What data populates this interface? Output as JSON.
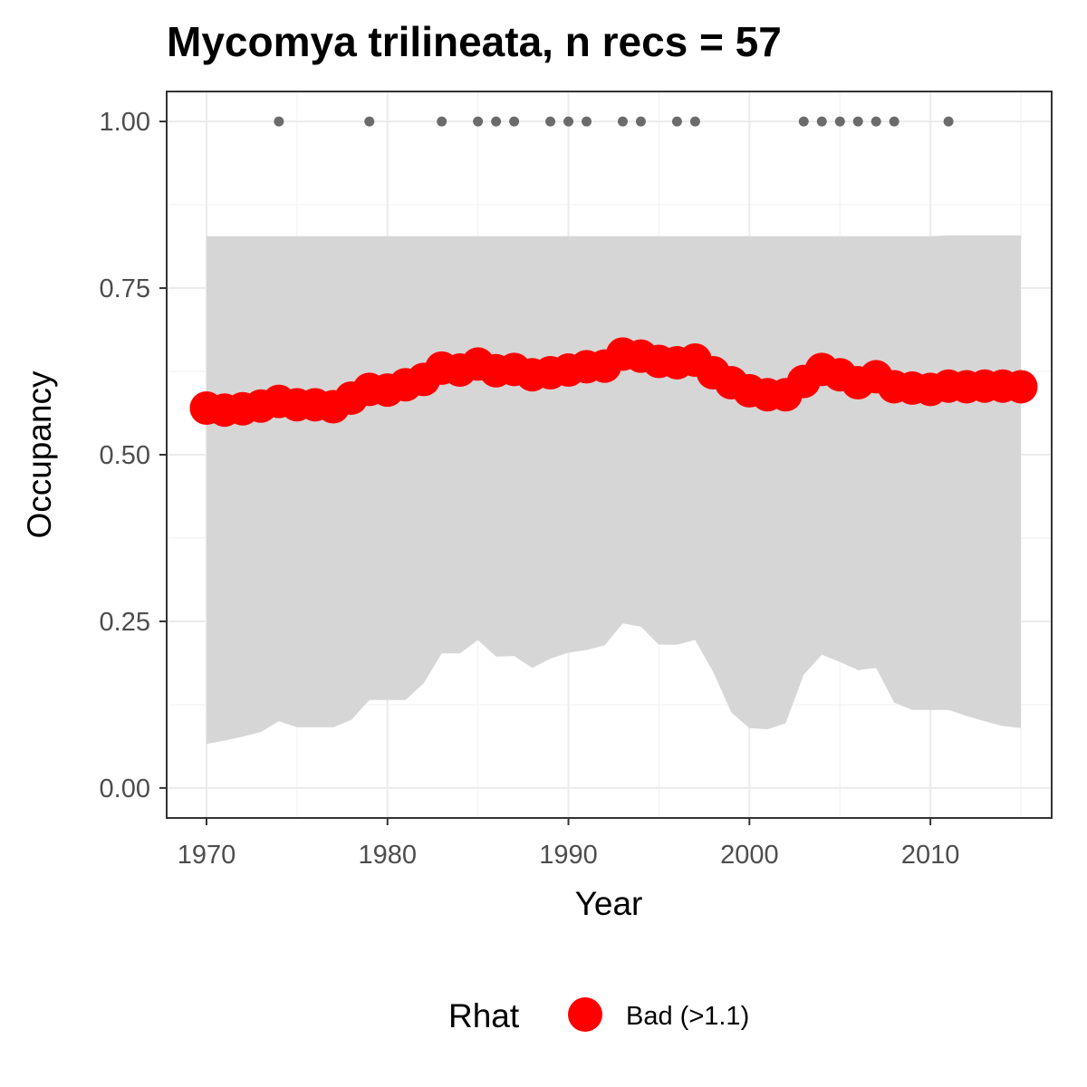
{
  "chart_data": {
    "type": "line",
    "title": "Mycomya trilineata, n recs = 57",
    "xlabel": "Year",
    "ylabel": "Occupancy",
    "xlim": [
      1967.8,
      2016.7
    ],
    "ylim": [
      -0.045,
      1.045
    ],
    "x_ticks": [
      1970,
      1980,
      1990,
      2000,
      2010
    ],
    "x_tick_labels": [
      "1970",
      "1980",
      "1990",
      "2000",
      "2010"
    ],
    "y_ticks": [
      0.0,
      0.25,
      0.5,
      0.75,
      1.0
    ],
    "y_tick_labels": [
      "0.00",
      "0.25",
      "0.50",
      "0.75",
      "1.00"
    ],
    "grid": true,
    "years": [
      1970,
      1971,
      1972,
      1973,
      1974,
      1975,
      1976,
      1977,
      1978,
      1979,
      1980,
      1981,
      1982,
      1983,
      1984,
      1985,
      1986,
      1987,
      1988,
      1989,
      1990,
      1991,
      1992,
      1993,
      1994,
      1995,
      1996,
      1997,
      1998,
      1999,
      2000,
      2001,
      2002,
      2003,
      2004,
      2005,
      2006,
      2007,
      2008,
      2009,
      2010,
      2011,
      2012,
      2013,
      2014,
      2015
    ],
    "occupancy": [
      0.57,
      0.567,
      0.569,
      0.573,
      0.58,
      0.575,
      0.575,
      0.572,
      0.585,
      0.598,
      0.597,
      0.605,
      0.613,
      0.63,
      0.627,
      0.636,
      0.626,
      0.628,
      0.62,
      0.623,
      0.627,
      0.632,
      0.633,
      0.651,
      0.648,
      0.64,
      0.638,
      0.642,
      0.623,
      0.608,
      0.596,
      0.59,
      0.59,
      0.61,
      0.628,
      0.62,
      0.608,
      0.617,
      0.602,
      0.6,
      0.598,
      0.603,
      0.602,
      0.603,
      0.603,
      0.602
    ],
    "ci_upper": [
      0.828,
      0.828,
      0.828,
      0.828,
      0.828,
      0.828,
      0.828,
      0.828,
      0.828,
      0.828,
      0.828,
      0.828,
      0.828,
      0.828,
      0.828,
      0.828,
      0.828,
      0.828,
      0.828,
      0.828,
      0.828,
      0.828,
      0.828,
      0.828,
      0.828,
      0.828,
      0.828,
      0.828,
      0.828,
      0.828,
      0.828,
      0.828,
      0.828,
      0.828,
      0.828,
      0.828,
      0.828,
      0.828,
      0.828,
      0.828,
      0.828,
      0.829,
      0.829,
      0.829,
      0.829,
      0.829
    ],
    "ci_lower": [
      0.066,
      0.071,
      0.077,
      0.084,
      0.1,
      0.091,
      0.091,
      0.091,
      0.102,
      0.132,
      0.132,
      0.132,
      0.157,
      0.202,
      0.202,
      0.222,
      0.197,
      0.198,
      0.18,
      0.194,
      0.203,
      0.207,
      0.214,
      0.247,
      0.242,
      0.215,
      0.215,
      0.222,
      0.174,
      0.113,
      0.09,
      0.088,
      0.097,
      0.17,
      0.2,
      0.189,
      0.177,
      0.18,
      0.128,
      0.117,
      0.117,
      0.117,
      0.108,
      0.1,
      0.093,
      0.09
    ],
    "records_years": [
      1974,
      1979,
      1983,
      1985,
      1986,
      1987,
      1989,
      1990,
      1991,
      1993,
      1994,
      1996,
      1997,
      2003,
      2004,
      2005,
      2006,
      2007,
      2008,
      2011
    ],
    "records_value": 1.0,
    "line_color": "#ff0000",
    "ribbon_color": "#d6d6d6",
    "record_color": "#6b6b6b",
    "legend": {
      "title": "Rhat",
      "items": [
        {
          "label": "Bad (>1.1)",
          "color": "#ff0000"
        }
      ],
      "placement": "bottom"
    }
  }
}
